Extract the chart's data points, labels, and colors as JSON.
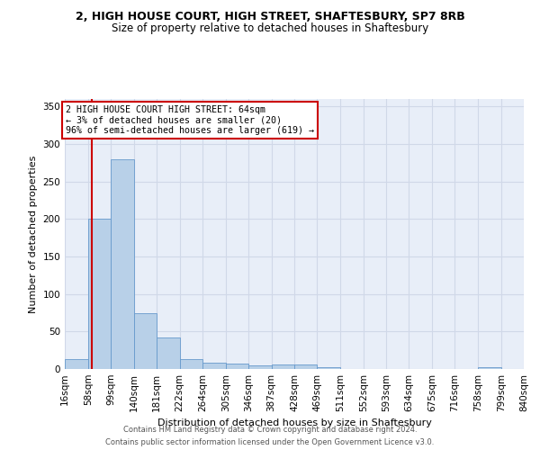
{
  "title_line1": "2, HIGH HOUSE COURT, HIGH STREET, SHAFTESBURY, SP7 8RB",
  "title_line2": "Size of property relative to detached houses in Shaftesbury",
  "xlabel": "Distribution of detached houses by size in Shaftesbury",
  "ylabel": "Number of detached properties",
  "bins": [
    16,
    58,
    99,
    140,
    181,
    222,
    264,
    305,
    346,
    387,
    428,
    469,
    511,
    552,
    593,
    634,
    675,
    716,
    758,
    799,
    840
  ],
  "bin_labels": [
    "16sqm",
    "58sqm",
    "99sqm",
    "140sqm",
    "181sqm",
    "222sqm",
    "264sqm",
    "305sqm",
    "346sqm",
    "387sqm",
    "428sqm",
    "469sqm",
    "511sqm",
    "552sqm",
    "593sqm",
    "634sqm",
    "675sqm",
    "716sqm",
    "758sqm",
    "799sqm",
    "840sqm"
  ],
  "counts": [
    13,
    200,
    280,
    75,
    42,
    13,
    8,
    7,
    5,
    6,
    6,
    3,
    0,
    0,
    0,
    0,
    0,
    0,
    3,
    0
  ],
  "bar_color": "#b8d0e8",
  "bar_edge_color": "#6699cc",
  "ylim": [
    0,
    360
  ],
  "yticks": [
    0,
    50,
    100,
    150,
    200,
    250,
    300,
    350
  ],
  "property_line_x": 64,
  "annotation_text": "2 HIGH HOUSE COURT HIGH STREET: 64sqm\n← 3% of detached houses are smaller (20)\n96% of semi-detached houses are larger (619) →",
  "annotation_box_color": "#ffffff",
  "annotation_box_edge_color": "#cc0000",
  "property_line_color": "#cc0000",
  "grid_color": "#d0d8e8",
  "plot_bg_color": "#e8eef8",
  "footer_line1": "Contains HM Land Registry data © Crown copyright and database right 2024.",
  "footer_line2": "Contains public sector information licensed under the Open Government Licence v3.0."
}
